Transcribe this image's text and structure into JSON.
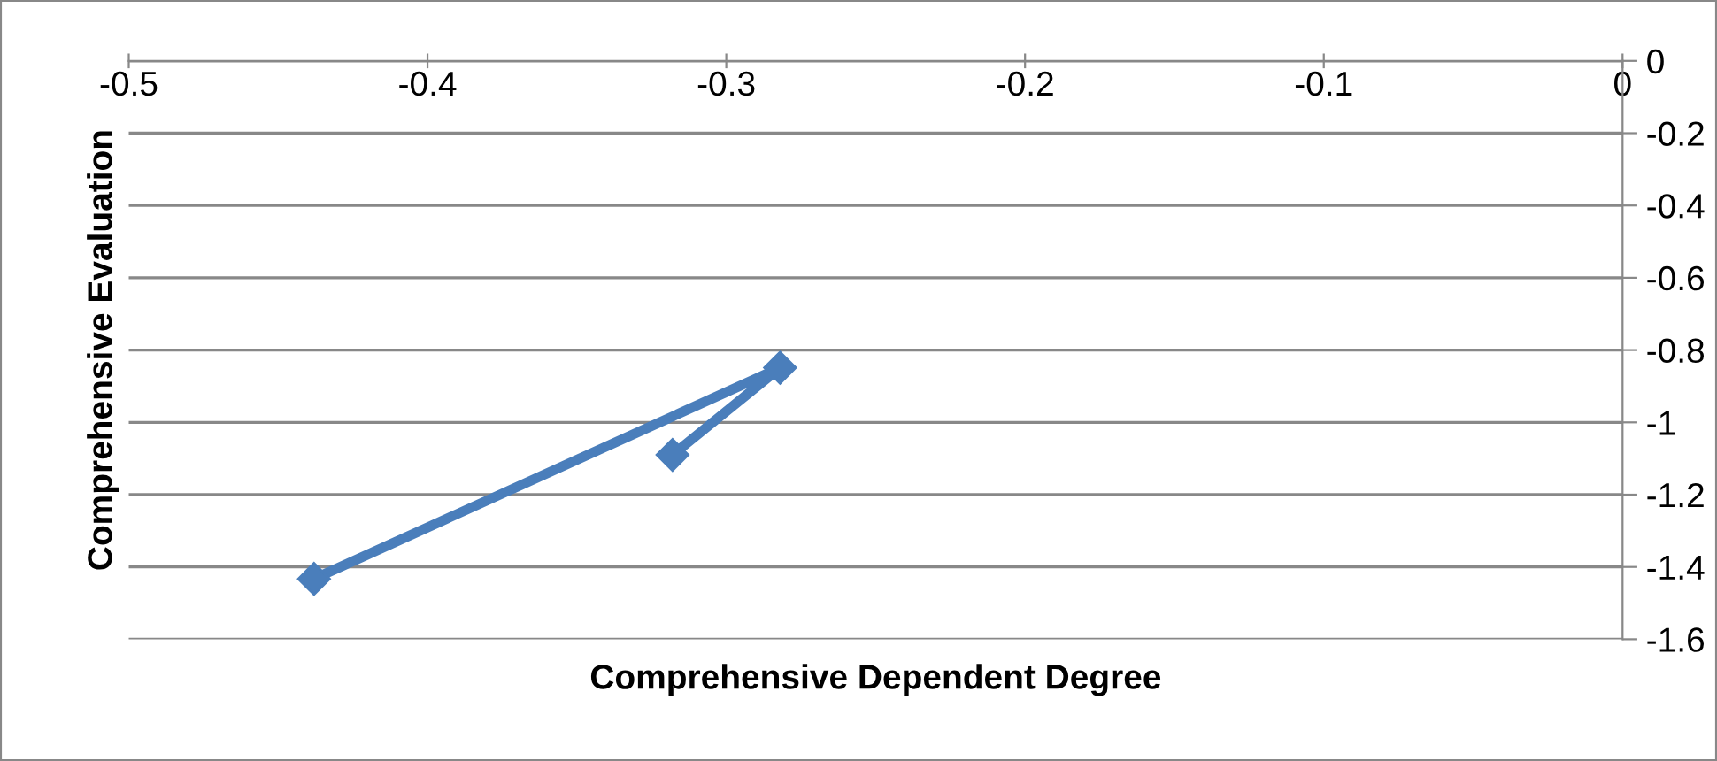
{
  "chart_data": {
    "type": "line",
    "xlabel": "Comprehensive Dependent Degree",
    "ylabel": "Comprehensive Evaluation",
    "x": [
      -0.438,
      -0.282,
      -0.318
    ],
    "series": [
      {
        "color": "#4a7ebb",
        "values": [
          -1.433,
          -0.849,
          -1.09
        ]
      }
    ],
    "xlim": [
      -0.5,
      0
    ],
    "xticks": [
      -0.5,
      -0.4,
      -0.3,
      -0.2,
      -0.1,
      0
    ],
    "ylim": [
      -1.6,
      0
    ],
    "yticks": [
      0,
      -0.2,
      -0.4,
      -0.6,
      -0.8,
      -1,
      -1.2,
      -1.4,
      -1.6
    ],
    "grid": "y",
    "marker": "diamond",
    "line_style": "solid",
    "legend": false
  }
}
